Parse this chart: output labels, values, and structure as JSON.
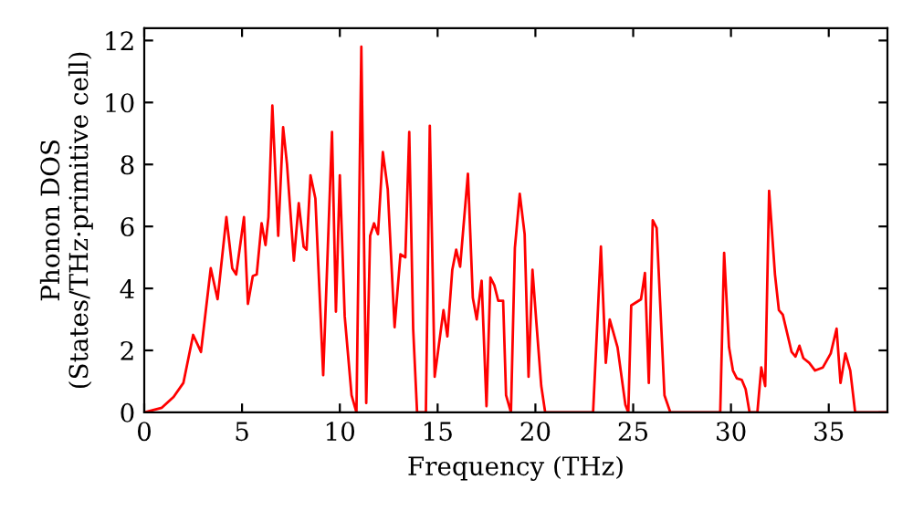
{
  "chart_data": {
    "type": "line",
    "xlabel": "Frequency (THz)",
    "ylabel": "Phonon DOS\n(States/THz·primitive cell)",
    "xlim": [
      0,
      38
    ],
    "ylim": [
      0,
      12.4
    ],
    "xticks": [
      0,
      5,
      10,
      15,
      20,
      25,
      30,
      35
    ],
    "yticks": [
      0,
      2,
      4,
      6,
      8,
      10,
      12
    ],
    "grid": false,
    "legend": false,
    "marker": "none",
    "line_style": "solid",
    "series": [
      {
        "color": "#ff0000",
        "x": [
          0,
          0.9,
          1.5,
          2.0,
          2.5,
          2.9,
          3.4,
          3.75,
          4.2,
          4.5,
          4.7,
          5.1,
          5.3,
          5.55,
          5.75,
          6.0,
          6.2,
          6.35,
          6.55,
          6.85,
          7.1,
          7.3,
          7.65,
          7.9,
          8.15,
          8.3,
          8.5,
          8.75,
          9.15,
          9.6,
          9.8,
          10.0,
          10.25,
          10.6,
          10.85,
          11.1,
          11.35,
          11.55,
          11.75,
          11.95,
          12.2,
          12.45,
          12.8,
          13.1,
          13.35,
          13.55,
          13.75,
          13.95,
          14.4,
          14.6,
          14.85,
          15.3,
          15.5,
          15.75,
          15.95,
          16.15,
          16.55,
          16.8,
          17.0,
          17.25,
          17.5,
          17.7,
          17.9,
          18.1,
          18.35,
          18.5,
          18.75,
          18.95,
          19.2,
          19.45,
          19.65,
          19.85,
          20.05,
          20.3,
          20.5,
          22.95,
          23.35,
          23.6,
          23.8,
          24.2,
          24.6,
          24.75,
          24.9,
          25.4,
          25.6,
          25.8,
          26.0,
          26.2,
          26.6,
          26.9,
          29.45,
          29.65,
          29.9,
          30.1,
          30.3,
          30.55,
          30.75,
          30.95,
          31.35,
          31.55,
          31.75,
          31.95,
          32.25,
          32.45,
          32.65,
          33.1,
          33.3,
          33.5,
          33.7,
          34.0,
          34.3,
          34.7,
          35.1,
          35.4,
          35.6,
          35.85,
          36.1,
          36.35,
          37.9
        ],
        "values": [
          0,
          0.15,
          0.5,
          0.95,
          2.5,
          1.95,
          4.65,
          3.65,
          6.3,
          4.65,
          4.45,
          6.3,
          3.5,
          4.4,
          4.45,
          6.1,
          5.4,
          6.3,
          9.9,
          5.7,
          9.2,
          8.0,
          4.9,
          6.75,
          5.35,
          5.25,
          7.65,
          6.9,
          1.2,
          9.05,
          3.25,
          7.65,
          3.1,
          0.55,
          0,
          11.8,
          0.3,
          5.7,
          6.1,
          5.75,
          8.4,
          7.2,
          2.75,
          5.1,
          5.0,
          9.05,
          2.7,
          0,
          0,
          9.25,
          1.15,
          3.3,
          2.45,
          4.6,
          5.25,
          4.7,
          7.7,
          3.7,
          3.0,
          4.25,
          0.2,
          4.35,
          4.1,
          3.6,
          3.6,
          0.55,
          0,
          5.3,
          7.05,
          5.75,
          1.15,
          4.6,
          2.9,
          0.85,
          0,
          0,
          5.35,
          1.6,
          3.0,
          2.1,
          0.25,
          0,
          3.45,
          3.65,
          4.5,
          0.95,
          6.2,
          5.95,
          0.55,
          0,
          0,
          5.15,
          2.1,
          1.35,
          1.1,
          1.05,
          0.75,
          0,
          0,
          1.45,
          0.85,
          7.15,
          4.45,
          3.3,
          3.15,
          1.95,
          1.8,
          2.15,
          1.75,
          1.6,
          1.35,
          1.45,
          1.9,
          2.7,
          0.95,
          1.9,
          1.35,
          0,
          0
        ]
      }
    ]
  }
}
